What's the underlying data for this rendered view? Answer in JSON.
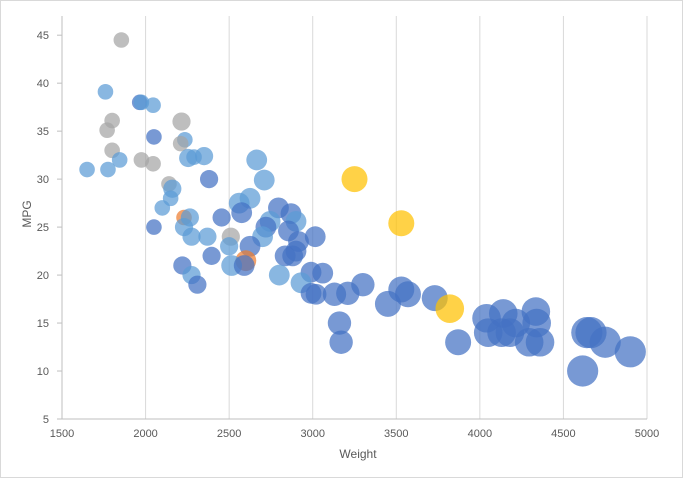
{
  "chart_data": {
    "type": "scatter",
    "title": "",
    "xlabel": "Weight",
    "ylabel": "MPG",
    "xlim": [
      1500,
      5000
    ],
    "ylim": [
      5,
      47
    ],
    "x_ticks": [
      "1500",
      "2000",
      "2500",
      "3000",
      "3500",
      "4000",
      "4500",
      "5000"
    ],
    "y_ticks": [
      "5",
      "10",
      "15",
      "20",
      "25",
      "30",
      "35",
      "40",
      "45"
    ],
    "gridlines": "vertical",
    "bubble_sizes": "vary by point",
    "legend": "none",
    "colors": {
      "blue": "#4472C4",
      "light_blue": "#5B9BD5",
      "gray": "#A5A5A5",
      "yellow": "#FFC000",
      "orange": "#ED7D31",
      "axis": "#bfbfbf",
      "grid": "#d9d9d9"
    },
    "points": [
      {
        "x": 1855,
        "y": 44.5,
        "size": 3,
        "color": "gray"
      },
      {
        "x": 1760,
        "y": 39.1,
        "size": 3,
        "color": "light_blue"
      },
      {
        "x": 1965,
        "y": 38,
        "size": 3,
        "color": "blue"
      },
      {
        "x": 1975,
        "y": 38,
        "size": 3,
        "color": "light_blue"
      },
      {
        "x": 2045,
        "y": 37.7,
        "size": 3,
        "color": "light_blue"
      },
      {
        "x": 1800,
        "y": 36.1,
        "size": 3,
        "color": "gray"
      },
      {
        "x": 2215,
        "y": 36,
        "size": 3.5,
        "color": "gray"
      },
      {
        "x": 1770,
        "y": 35.1,
        "size": 3,
        "color": "gray"
      },
      {
        "x": 2050,
        "y": 34.4,
        "size": 3,
        "color": "blue"
      },
      {
        "x": 2235,
        "y": 34.1,
        "size": 3,
        "color": "light_blue"
      },
      {
        "x": 2210,
        "y": 33.7,
        "size": 3,
        "color": "gray"
      },
      {
        "x": 1800,
        "y": 33,
        "size": 3,
        "color": "gray"
      },
      {
        "x": 2350,
        "y": 32.4,
        "size": 3.5,
        "color": "light_blue"
      },
      {
        "x": 2255,
        "y": 32.2,
        "size": 3.5,
        "color": "light_blue"
      },
      {
        "x": 2290,
        "y": 32.3,
        "size": 3,
        "color": "light_blue"
      },
      {
        "x": 1975,
        "y": 32,
        "size": 3,
        "color": "gray"
      },
      {
        "x": 2665,
        "y": 32,
        "size": 4,
        "color": "light_blue"
      },
      {
        "x": 1845,
        "y": 32,
        "size": 3,
        "color": "light_blue"
      },
      {
        "x": 2045,
        "y": 31.6,
        "size": 3,
        "color": "gray"
      },
      {
        "x": 1650,
        "y": 31,
        "size": 3,
        "color": "light_blue"
      },
      {
        "x": 1775,
        "y": 31,
        "size": 3,
        "color": "light_blue"
      },
      {
        "x": 2380,
        "y": 30,
        "size": 3.5,
        "color": "blue"
      },
      {
        "x": 2710,
        "y": 29.9,
        "size": 4,
        "color": "light_blue"
      },
      {
        "x": 3250,
        "y": 30,
        "size": 5,
        "color": "yellow"
      },
      {
        "x": 2140,
        "y": 29.5,
        "size": 3,
        "color": "gray"
      },
      {
        "x": 2160,
        "y": 29,
        "size": 3.5,
        "color": "light_blue"
      },
      {
        "x": 2150,
        "y": 28,
        "size": 3,
        "color": "light_blue"
      },
      {
        "x": 2625,
        "y": 28,
        "size": 4,
        "color": "light_blue"
      },
      {
        "x": 2560,
        "y": 27.5,
        "size": 4,
        "color": "light_blue"
      },
      {
        "x": 2795,
        "y": 27,
        "size": 4,
        "color": "blue"
      },
      {
        "x": 2100,
        "y": 27,
        "size": 3,
        "color": "light_blue"
      },
      {
        "x": 2575,
        "y": 26.5,
        "size": 4,
        "color": "blue"
      },
      {
        "x": 2870,
        "y": 26.4,
        "size": 4,
        "color": "blue"
      },
      {
        "x": 2455,
        "y": 26,
        "size": 3.5,
        "color": "blue"
      },
      {
        "x": 2230,
        "y": 26,
        "size": 3,
        "color": "orange"
      },
      {
        "x": 2265,
        "y": 26,
        "size": 3.5,
        "color": "light_blue"
      },
      {
        "x": 2745,
        "y": 25.6,
        "size": 4,
        "color": "light_blue"
      },
      {
        "x": 2900,
        "y": 25.6,
        "size": 4,
        "color": "light_blue"
      },
      {
        "x": 2720,
        "y": 25,
        "size": 4,
        "color": "blue"
      },
      {
        "x": 2050,
        "y": 25,
        "size": 3,
        "color": "blue"
      },
      {
        "x": 2230,
        "y": 25,
        "size": 3.5,
        "color": "light_blue"
      },
      {
        "x": 3530,
        "y": 25.4,
        "size": 5,
        "color": "yellow"
      },
      {
        "x": 2855,
        "y": 24.6,
        "size": 4,
        "color": "blue"
      },
      {
        "x": 3015,
        "y": 24,
        "size": 4,
        "color": "blue"
      },
      {
        "x": 2510,
        "y": 24,
        "size": 3.5,
        "color": "gray"
      },
      {
        "x": 2370,
        "y": 24,
        "size": 3.5,
        "color": "light_blue"
      },
      {
        "x": 2275,
        "y": 24,
        "size": 3.5,
        "color": "light_blue"
      },
      {
        "x": 2700,
        "y": 24,
        "size": 4,
        "color": "light_blue"
      },
      {
        "x": 2915,
        "y": 23.5,
        "size": 4,
        "color": "blue"
      },
      {
        "x": 2500,
        "y": 23,
        "size": 3.5,
        "color": "light_blue"
      },
      {
        "x": 2625,
        "y": 23,
        "size": 4,
        "color": "blue"
      },
      {
        "x": 2900,
        "y": 22.5,
        "size": 4,
        "color": "blue"
      },
      {
        "x": 2880,
        "y": 22,
        "size": 4,
        "color": "blue"
      },
      {
        "x": 2835,
        "y": 22,
        "size": 4,
        "color": "blue"
      },
      {
        "x": 2395,
        "y": 22,
        "size": 3.5,
        "color": "blue"
      },
      {
        "x": 2600,
        "y": 21.5,
        "size": 4,
        "color": "orange"
      },
      {
        "x": 2515,
        "y": 21,
        "size": 4,
        "color": "light_blue"
      },
      {
        "x": 2590,
        "y": 21,
        "size": 4,
        "color": "blue"
      },
      {
        "x": 2220,
        "y": 21,
        "size": 3.5,
        "color": "blue"
      },
      {
        "x": 2990,
        "y": 20.3,
        "size": 4,
        "color": "blue"
      },
      {
        "x": 3060,
        "y": 20.2,
        "size": 4,
        "color": "blue"
      },
      {
        "x": 2800,
        "y": 20,
        "size": 4,
        "color": "light_blue"
      },
      {
        "x": 2275,
        "y": 20,
        "size": 3.5,
        "color": "light_blue"
      },
      {
        "x": 2930,
        "y": 19.2,
        "size": 4,
        "color": "light_blue"
      },
      {
        "x": 3300,
        "y": 19,
        "size": 4.5,
        "color": "blue"
      },
      {
        "x": 2310,
        "y": 19,
        "size": 3.5,
        "color": "blue"
      },
      {
        "x": 2990,
        "y": 18.1,
        "size": 4,
        "color": "blue"
      },
      {
        "x": 3210,
        "y": 18.1,
        "size": 4.5,
        "color": "blue"
      },
      {
        "x": 3020,
        "y": 18,
        "size": 4,
        "color": "blue"
      },
      {
        "x": 3130,
        "y": 18,
        "size": 4.5,
        "color": "blue"
      },
      {
        "x": 3530,
        "y": 18.5,
        "size": 5,
        "color": "blue"
      },
      {
        "x": 3570,
        "y": 18,
        "size": 5,
        "color": "blue"
      },
      {
        "x": 3730,
        "y": 17.6,
        "size": 5,
        "color": "blue"
      },
      {
        "x": 3450,
        "y": 17,
        "size": 5,
        "color": "blue"
      },
      {
        "x": 3820,
        "y": 16.5,
        "size": 5.5,
        "color": "yellow"
      },
      {
        "x": 4040,
        "y": 15.5,
        "size": 5.5,
        "color": "blue"
      },
      {
        "x": 4140,
        "y": 16,
        "size": 5.5,
        "color": "blue"
      },
      {
        "x": 4335,
        "y": 16.2,
        "size": 5.5,
        "color": "blue"
      },
      {
        "x": 4215,
        "y": 15,
        "size": 5.5,
        "color": "blue"
      },
      {
        "x": 4340,
        "y": 15,
        "size": 5.5,
        "color": "blue"
      },
      {
        "x": 3160,
        "y": 15,
        "size": 4.5,
        "color": "blue"
      },
      {
        "x": 4050,
        "y": 14,
        "size": 5.5,
        "color": "blue"
      },
      {
        "x": 4130,
        "y": 14,
        "size": 5.5,
        "color": "blue"
      },
      {
        "x": 4180,
        "y": 14,
        "size": 5.5,
        "color": "blue"
      },
      {
        "x": 4640,
        "y": 14,
        "size": 6,
        "color": "blue"
      },
      {
        "x": 4665,
        "y": 14,
        "size": 6,
        "color": "blue"
      },
      {
        "x": 3870,
        "y": 13,
        "size": 5,
        "color": "blue"
      },
      {
        "x": 4295,
        "y": 13,
        "size": 5.5,
        "color": "blue"
      },
      {
        "x": 4360,
        "y": 13,
        "size": 5.5,
        "color": "blue"
      },
      {
        "x": 4750,
        "y": 13,
        "size": 6,
        "color": "blue"
      },
      {
        "x": 3170,
        "y": 13,
        "size": 4.5,
        "color": "blue"
      },
      {
        "x": 4900,
        "y": 12,
        "size": 6,
        "color": "blue"
      },
      {
        "x": 4615,
        "y": 10,
        "size": 6,
        "color": "blue"
      }
    ]
  }
}
